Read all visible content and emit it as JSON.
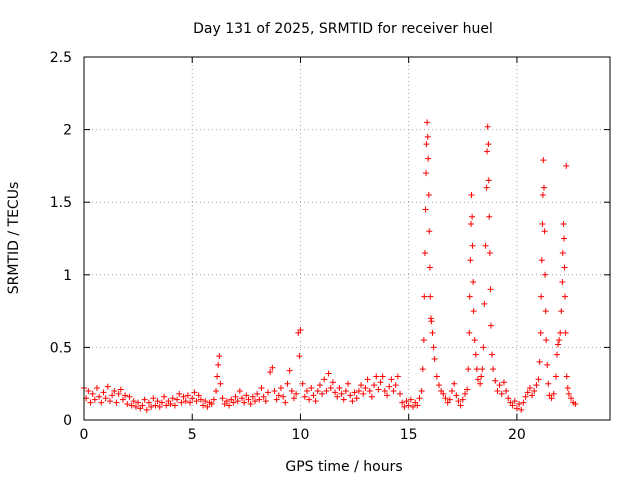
{
  "chart_data": {
    "type": "scatter",
    "title": "Day 131 of 2025, SRMTID for receiver huel",
    "xlabel": "GPS time / hours",
    "ylabel": "SRMTID / TECUs",
    "xlim": [
      0,
      24.3
    ],
    "ylim": [
      0,
      2.5
    ],
    "xticks": [
      0,
      5,
      10,
      15,
      20
    ],
    "xtick_labels": [
      "0",
      "5",
      "10",
      "15",
      "20"
    ],
    "yticks": [
      0,
      0.5,
      1,
      1.5,
      2,
      2.5
    ],
    "ytick_labels": [
      "0",
      "0.5",
      "1",
      "1.5",
      "2",
      "2.5"
    ],
    "grid": true,
    "marker": "+",
    "series": [
      {
        "name": "SRMTID",
        "color": "#ff0000",
        "points": [
          [
            0.0,
            0.22
          ],
          [
            0.1,
            0.15
          ],
          [
            0.2,
            0.2
          ],
          [
            0.3,
            0.12
          ],
          [
            0.4,
            0.18
          ],
          [
            0.5,
            0.14
          ],
          [
            0.6,
            0.22
          ],
          [
            0.7,
            0.16
          ],
          [
            0.8,
            0.12
          ],
          [
            0.9,
            0.19
          ],
          [
            1.0,
            0.15
          ],
          [
            1.1,
            0.23
          ],
          [
            1.2,
            0.13
          ],
          [
            1.3,
            0.17
          ],
          [
            1.4,
            0.2
          ],
          [
            1.5,
            0.12
          ],
          [
            1.6,
            0.18
          ],
          [
            1.7,
            0.21
          ],
          [
            1.8,
            0.14
          ],
          [
            1.9,
            0.17
          ],
          [
            2.0,
            0.11
          ],
          [
            2.1,
            0.16
          ],
          [
            2.2,
            0.1
          ],
          [
            2.3,
            0.13
          ],
          [
            2.4,
            0.09
          ],
          [
            2.5,
            0.12
          ],
          [
            2.6,
            0.08
          ],
          [
            2.7,
            0.1
          ],
          [
            2.8,
            0.14
          ],
          [
            2.9,
            0.07
          ],
          [
            3.0,
            0.12
          ],
          [
            3.1,
            0.09
          ],
          [
            3.2,
            0.15
          ],
          [
            3.3,
            0.1
          ],
          [
            3.4,
            0.13
          ],
          [
            3.5,
            0.09
          ],
          [
            3.6,
            0.12
          ],
          [
            3.7,
            0.16
          ],
          [
            3.8,
            0.1
          ],
          [
            3.9,
            0.13
          ],
          [
            4.0,
            0.11
          ],
          [
            4.1,
            0.15
          ],
          [
            4.2,
            0.1
          ],
          [
            4.3,
            0.14
          ],
          [
            4.4,
            0.18
          ],
          [
            4.5,
            0.12
          ],
          [
            4.6,
            0.16
          ],
          [
            4.7,
            0.13
          ],
          [
            4.8,
            0.17
          ],
          [
            4.9,
            0.12
          ],
          [
            5.0,
            0.15
          ],
          [
            5.1,
            0.19
          ],
          [
            5.2,
            0.13
          ],
          [
            5.3,
            0.17
          ],
          [
            5.4,
            0.14
          ],
          [
            5.5,
            0.1
          ],
          [
            5.6,
            0.13
          ],
          [
            5.7,
            0.09
          ],
          [
            5.8,
            0.12
          ],
          [
            5.9,
            0.11
          ],
          [
            6.0,
            0.14
          ],
          [
            6.1,
            0.2
          ],
          [
            6.15,
            0.3
          ],
          [
            6.2,
            0.38
          ],
          [
            6.25,
            0.44
          ],
          [
            6.3,
            0.25
          ],
          [
            6.4,
            0.15
          ],
          [
            6.5,
            0.11
          ],
          [
            6.6,
            0.13
          ],
          [
            6.7,
            0.1
          ],
          [
            6.8,
            0.14
          ],
          [
            6.9,
            0.12
          ],
          [
            7.0,
            0.16
          ],
          [
            7.1,
            0.13
          ],
          [
            7.2,
            0.2
          ],
          [
            7.3,
            0.15
          ],
          [
            7.4,
            0.12
          ],
          [
            7.5,
            0.17
          ],
          [
            7.6,
            0.14
          ],
          [
            7.7,
            0.11
          ],
          [
            7.8,
            0.16
          ],
          [
            7.9,
            0.13
          ],
          [
            8.0,
            0.18
          ],
          [
            8.1,
            0.14
          ],
          [
            8.2,
            0.22
          ],
          [
            8.3,
            0.16
          ],
          [
            8.4,
            0.13
          ],
          [
            8.5,
            0.19
          ],
          [
            8.6,
            0.33
          ],
          [
            8.7,
            0.36
          ],
          [
            8.8,
            0.2
          ],
          [
            8.9,
            0.14
          ],
          [
            9.0,
            0.17
          ],
          [
            9.1,
            0.22
          ],
          [
            9.2,
            0.16
          ],
          [
            9.3,
            0.12
          ],
          [
            9.4,
            0.25
          ],
          [
            9.5,
            0.34
          ],
          [
            9.6,
            0.2
          ],
          [
            9.7,
            0.15
          ],
          [
            9.8,
            0.18
          ],
          [
            9.9,
            0.6
          ],
          [
            9.95,
            0.44
          ],
          [
            10.0,
            0.62
          ],
          [
            10.1,
            0.25
          ],
          [
            10.2,
            0.16
          ],
          [
            10.3,
            0.2
          ],
          [
            10.4,
            0.14
          ],
          [
            10.5,
            0.22
          ],
          [
            10.6,
            0.17
          ],
          [
            10.7,
            0.13
          ],
          [
            10.8,
            0.2
          ],
          [
            10.9,
            0.24
          ],
          [
            11.0,
            0.18
          ],
          [
            11.1,
            0.28
          ],
          [
            11.2,
            0.2
          ],
          [
            11.3,
            0.32
          ],
          [
            11.4,
            0.22
          ],
          [
            11.5,
            0.26
          ],
          [
            11.6,
            0.19
          ],
          [
            11.7,
            0.16
          ],
          [
            11.8,
            0.22
          ],
          [
            11.9,
            0.18
          ],
          [
            12.0,
            0.14
          ],
          [
            12.1,
            0.2
          ],
          [
            12.2,
            0.25
          ],
          [
            12.3,
            0.17
          ],
          [
            12.4,
            0.13
          ],
          [
            12.5,
            0.19
          ],
          [
            12.6,
            0.15
          ],
          [
            12.7,
            0.2
          ],
          [
            12.8,
            0.24
          ],
          [
            12.9,
            0.18
          ],
          [
            13.0,
            0.22
          ],
          [
            13.1,
            0.28
          ],
          [
            13.2,
            0.2
          ],
          [
            13.3,
            0.16
          ],
          [
            13.4,
            0.24
          ],
          [
            13.5,
            0.3
          ],
          [
            13.6,
            0.21
          ],
          [
            13.7,
            0.26
          ],
          [
            13.8,
            0.3
          ],
          [
            13.9,
            0.2
          ],
          [
            14.0,
            0.17
          ],
          [
            14.1,
            0.23
          ],
          [
            14.2,
            0.28
          ],
          [
            14.3,
            0.2
          ],
          [
            14.4,
            0.24
          ],
          [
            14.5,
            0.3
          ],
          [
            14.6,
            0.18
          ],
          [
            14.7,
            0.12
          ],
          [
            14.8,
            0.09
          ],
          [
            14.9,
            0.13
          ],
          [
            15.0,
            0.1
          ],
          [
            15.1,
            0.14
          ],
          [
            15.2,
            0.09
          ],
          [
            15.3,
            0.12
          ],
          [
            15.4,
            0.1
          ],
          [
            15.5,
            0.15
          ],
          [
            15.6,
            0.2
          ],
          [
            15.65,
            0.35
          ],
          [
            15.7,
            0.55
          ],
          [
            15.72,
            0.85
          ],
          [
            15.75,
            1.15
          ],
          [
            15.78,
            1.45
          ],
          [
            15.8,
            1.7
          ],
          [
            15.82,
            1.9
          ],
          [
            15.85,
            2.05
          ],
          [
            15.88,
            1.95
          ],
          [
            15.9,
            1.8
          ],
          [
            15.93,
            1.55
          ],
          [
            15.95,
            1.3
          ],
          [
            15.98,
            1.05
          ],
          [
            16.0,
            0.85
          ],
          [
            16.03,
            0.7
          ],
          [
            16.05,
            0.68
          ],
          [
            16.1,
            0.6
          ],
          [
            16.15,
            0.5
          ],
          [
            16.2,
            0.42
          ],
          [
            16.3,
            0.3
          ],
          [
            16.4,
            0.24
          ],
          [
            16.5,
            0.2
          ],
          [
            16.6,
            0.18
          ],
          [
            16.7,
            0.15
          ],
          [
            16.8,
            0.12
          ],
          [
            16.9,
            0.14
          ],
          [
            17.0,
            0.2
          ],
          [
            17.1,
            0.25
          ],
          [
            17.2,
            0.17
          ],
          [
            17.3,
            0.13
          ],
          [
            17.4,
            0.1
          ],
          [
            17.5,
            0.14
          ],
          [
            17.6,
            0.18
          ],
          [
            17.7,
            0.21
          ],
          [
            17.75,
            0.35
          ],
          [
            17.8,
            0.6
          ],
          [
            17.82,
            0.85
          ],
          [
            17.85,
            1.1
          ],
          [
            17.88,
            1.35
          ],
          [
            17.9,
            1.55
          ],
          [
            17.93,
            1.4
          ],
          [
            17.95,
            1.2
          ],
          [
            17.98,
            0.95
          ],
          [
            18.0,
            0.75
          ],
          [
            18.05,
            0.55
          ],
          [
            18.1,
            0.45
          ],
          [
            18.15,
            0.35
          ],
          [
            18.2,
            0.28
          ],
          [
            18.3,
            0.25
          ],
          [
            18.35,
            0.3
          ],
          [
            18.4,
            0.35
          ],
          [
            18.45,
            0.5
          ],
          [
            18.5,
            0.8
          ],
          [
            18.55,
            1.2
          ],
          [
            18.6,
            1.6
          ],
          [
            18.62,
            1.85
          ],
          [
            18.65,
            2.02
          ],
          [
            18.68,
            1.9
          ],
          [
            18.7,
            1.65
          ],
          [
            18.72,
            1.4
          ],
          [
            18.75,
            1.15
          ],
          [
            18.78,
            0.9
          ],
          [
            18.8,
            0.65
          ],
          [
            18.85,
            0.45
          ],
          [
            18.9,
            0.35
          ],
          [
            19.0,
            0.27
          ],
          [
            19.1,
            0.2
          ],
          [
            19.2,
            0.24
          ],
          [
            19.3,
            0.18
          ],
          [
            19.4,
            0.26
          ],
          [
            19.5,
            0.2
          ],
          [
            19.6,
            0.15
          ],
          [
            19.7,
            0.12
          ],
          [
            19.8,
            0.1
          ],
          [
            19.9,
            0.13
          ],
          [
            20.0,
            0.08
          ],
          [
            20.1,
            0.11
          ],
          [
            20.2,
            0.07
          ],
          [
            20.3,
            0.12
          ],
          [
            20.4,
            0.16
          ],
          [
            20.5,
            0.19
          ],
          [
            20.6,
            0.22
          ],
          [
            20.7,
            0.17
          ],
          [
            20.8,
            0.2
          ],
          [
            20.9,
            0.24
          ],
          [
            21.0,
            0.28
          ],
          [
            21.05,
            0.4
          ],
          [
            21.1,
            0.6
          ],
          [
            21.12,
            0.85
          ],
          [
            21.15,
            1.1
          ],
          [
            21.18,
            1.35
          ],
          [
            21.2,
            1.55
          ],
          [
            21.22,
            1.79
          ],
          [
            21.25,
            1.6
          ],
          [
            21.28,
            1.3
          ],
          [
            21.3,
            1.0
          ],
          [
            21.33,
            0.75
          ],
          [
            21.35,
            0.55
          ],
          [
            21.4,
            0.38
          ],
          [
            21.45,
            0.25
          ],
          [
            21.5,
            0.17
          ],
          [
            21.6,
            0.15
          ],
          [
            21.7,
            0.18
          ],
          [
            21.8,
            0.3
          ],
          [
            21.85,
            0.45
          ],
          [
            21.9,
            0.52
          ],
          [
            21.95,
            0.55
          ],
          [
            22.0,
            0.6
          ],
          [
            22.05,
            0.75
          ],
          [
            22.1,
            0.95
          ],
          [
            22.12,
            1.15
          ],
          [
            22.15,
            1.35
          ],
          [
            22.18,
            1.25
          ],
          [
            22.2,
            1.05
          ],
          [
            22.22,
            0.85
          ],
          [
            22.25,
            0.6
          ],
          [
            22.28,
            1.75
          ],
          [
            22.3,
            0.3
          ],
          [
            22.35,
            0.22
          ],
          [
            22.4,
            0.18
          ],
          [
            22.5,
            0.15
          ],
          [
            22.6,
            0.12
          ],
          [
            22.7,
            0.11
          ]
        ]
      }
    ]
  }
}
